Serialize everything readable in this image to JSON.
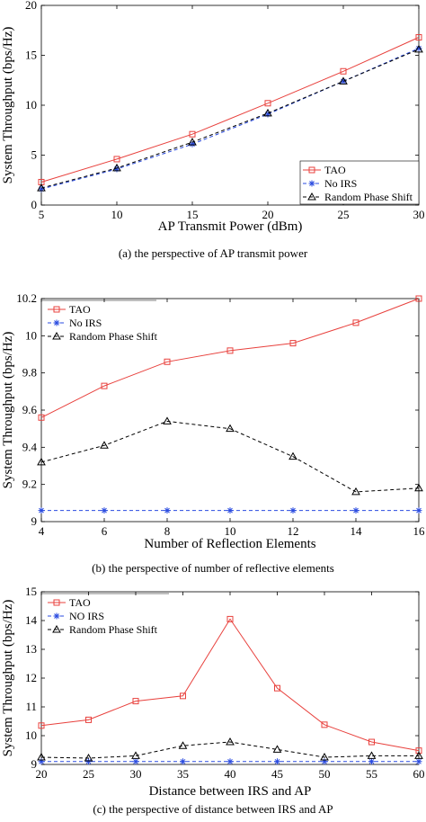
{
  "colors": {
    "tao": "#e8413d",
    "no_irs": "#2a4be0",
    "random": "#000000"
  },
  "chart_data": [
    {
      "type": "line",
      "x": [
        5,
        10,
        15,
        20,
        25,
        30
      ],
      "xlabel": "AP Transmit Power (dBm)",
      "ylabel": "System Throughput (bps/Hz)",
      "xlim": [
        5,
        30
      ],
      "ylim": [
        0,
        20
      ],
      "xticks": [
        "5",
        "10",
        "15",
        "20",
        "25",
        "30"
      ],
      "yticks": [
        "0",
        "5",
        "10",
        "15",
        "20"
      ],
      "legend_position": "bottom-right",
      "caption": "(a) the perspective of AP transmit power",
      "series": [
        {
          "name": "TAO",
          "values": [
            2.3,
            4.6,
            7.1,
            10.2,
            13.4,
            16.8
          ]
        },
        {
          "name": "No IRS",
          "values": [
            1.6,
            3.6,
            6.1,
            9.1,
            12.4,
            15.7
          ]
        },
        {
          "name": "Random Phase Shift",
          "values": [
            1.7,
            3.7,
            6.3,
            9.2,
            12.4,
            15.6
          ]
        }
      ]
    },
    {
      "type": "line",
      "x": [
        4,
        6,
        8,
        10,
        12,
        14,
        16
      ],
      "xlabel": "Number of Reflection Elements",
      "ylabel": "System Throughput (bps/Hz)",
      "xlim": [
        4,
        16
      ],
      "ylim": [
        9,
        10.2
      ],
      "xticks": [
        "4",
        "6",
        "8",
        "10",
        "12",
        "14",
        "16"
      ],
      "yticks": [
        "9",
        "9.2",
        "9.4",
        "9.6",
        "9.8",
        "10",
        "10.2"
      ],
      "legend_position": "top-left",
      "caption": "(b) the perspective of number of reflective elements",
      "series": [
        {
          "name": "TAO",
          "values": [
            9.56,
            9.73,
            9.86,
            9.92,
            9.96,
            10.07,
            10.2
          ]
        },
        {
          "name": "No IRS",
          "values": [
            9.06,
            9.06,
            9.06,
            9.06,
            9.06,
            9.06,
            9.06
          ]
        },
        {
          "name": "Random Phase Shift",
          "values": [
            9.32,
            9.41,
            9.54,
            9.5,
            9.35,
            9.16,
            9.18
          ]
        }
      ]
    },
    {
      "type": "line",
      "x": [
        20,
        25,
        30,
        35,
        40,
        45,
        50,
        55,
        60
      ],
      "xlabel": "Distance between IRS and AP",
      "ylabel": "System Throughput (bps/Hz)",
      "xlim": [
        20,
        60
      ],
      "ylim": [
        9,
        15
      ],
      "xticks": [
        "20",
        "25",
        "30",
        "35",
        "40",
        "45",
        "50",
        "55",
        "60"
      ],
      "yticks": [
        "9",
        "10",
        "11",
        "12",
        "13",
        "14",
        "15"
      ],
      "legend_position": "top-left",
      "caption": "(c) the perspective of distance between IRS and AP",
      "series": [
        {
          "name": "TAO",
          "values": [
            10.35,
            10.55,
            11.2,
            11.38,
            14.05,
            11.65,
            10.38,
            9.78,
            9.48
          ]
        },
        {
          "name": "NO IRS",
          "values": [
            9.1,
            9.1,
            9.1,
            9.1,
            9.1,
            9.1,
            9.1,
            9.1,
            9.1
          ]
        },
        {
          "name": "Random Phase Shift",
          "values": [
            9.25,
            9.22,
            9.3,
            9.65,
            9.78,
            9.52,
            9.25,
            9.3,
            9.3
          ]
        }
      ]
    }
  ]
}
